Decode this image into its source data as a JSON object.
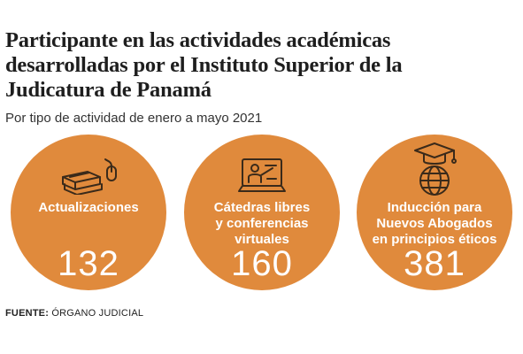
{
  "title": {
    "line1": "Participante en las actividades académicas",
    "line2": "desarrolladas por el Instituto Superior de la",
    "line3": "Judicatura de Panamá"
  },
  "subtitle": "Por tipo de actividad de enero a mayo 2021",
  "accent_color": "#e08a3c",
  "cards": [
    {
      "icon": "books-mouse-icon",
      "label_lines": [
        "Actualizaciones"
      ],
      "value": "132"
    },
    {
      "icon": "monitor-presenter-icon",
      "label_lines": [
        "Cátedras libres",
        "y conferencias",
        "virtuales"
      ],
      "value": "160"
    },
    {
      "icon": "graduation-globe-icon",
      "label_lines": [
        "Inducción para",
        "Nuevos Abogados",
        "en principios éticos"
      ],
      "value": "381"
    }
  ],
  "source": {
    "prefix": "FUENTE:",
    "text": " ÓRGANO JUDICIAL"
  }
}
